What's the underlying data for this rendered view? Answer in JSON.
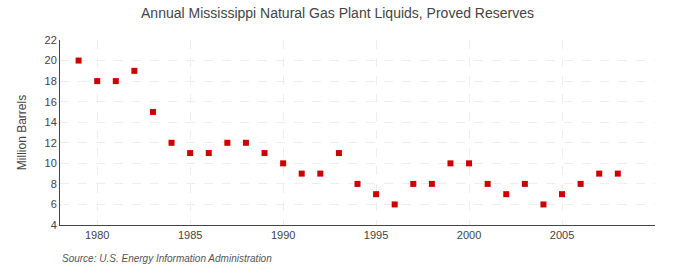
{
  "chart_data": {
    "type": "scatter",
    "title": "Annual Mississippi Natural Gas Plant Liquids, Proved Reserves",
    "ylabel": "Million Barrels",
    "annotations": [
      "Source: U.S. Energy Information Administration"
    ],
    "x": [
      1979,
      1980,
      1981,
      1982,
      1983,
      1984,
      1985,
      1986,
      1987,
      1988,
      1989,
      1990,
      1991,
      1992,
      1993,
      1994,
      1995,
      1996,
      1997,
      1998,
      1999,
      2000,
      2001,
      2002,
      2003,
      2004,
      2005,
      2006,
      2007,
      2008
    ],
    "values": [
      20.0,
      18.0,
      18.0,
      19.0,
      15.0,
      12.0,
      11.0,
      11.0,
      12.0,
      12.0,
      11.0,
      10.0,
      9.0,
      9.0,
      11.0,
      8.0,
      7.0,
      6.0,
      8.0,
      8.0,
      10.0,
      10.0,
      8.0,
      7.0,
      8.0,
      6.0,
      7.0,
      8.0,
      9.0,
      9.0
    ],
    "color": "#cc0000",
    "marker": "square",
    "xlim": [
      1978,
      2010
    ],
    "ylim": [
      4,
      22
    ],
    "xticks": [
      1980,
      1985,
      1990,
      1995,
      2000,
      2005
    ],
    "yticks": [
      4,
      6,
      8,
      10,
      12,
      14,
      16,
      18,
      20,
      22
    ],
    "grid": true
  }
}
